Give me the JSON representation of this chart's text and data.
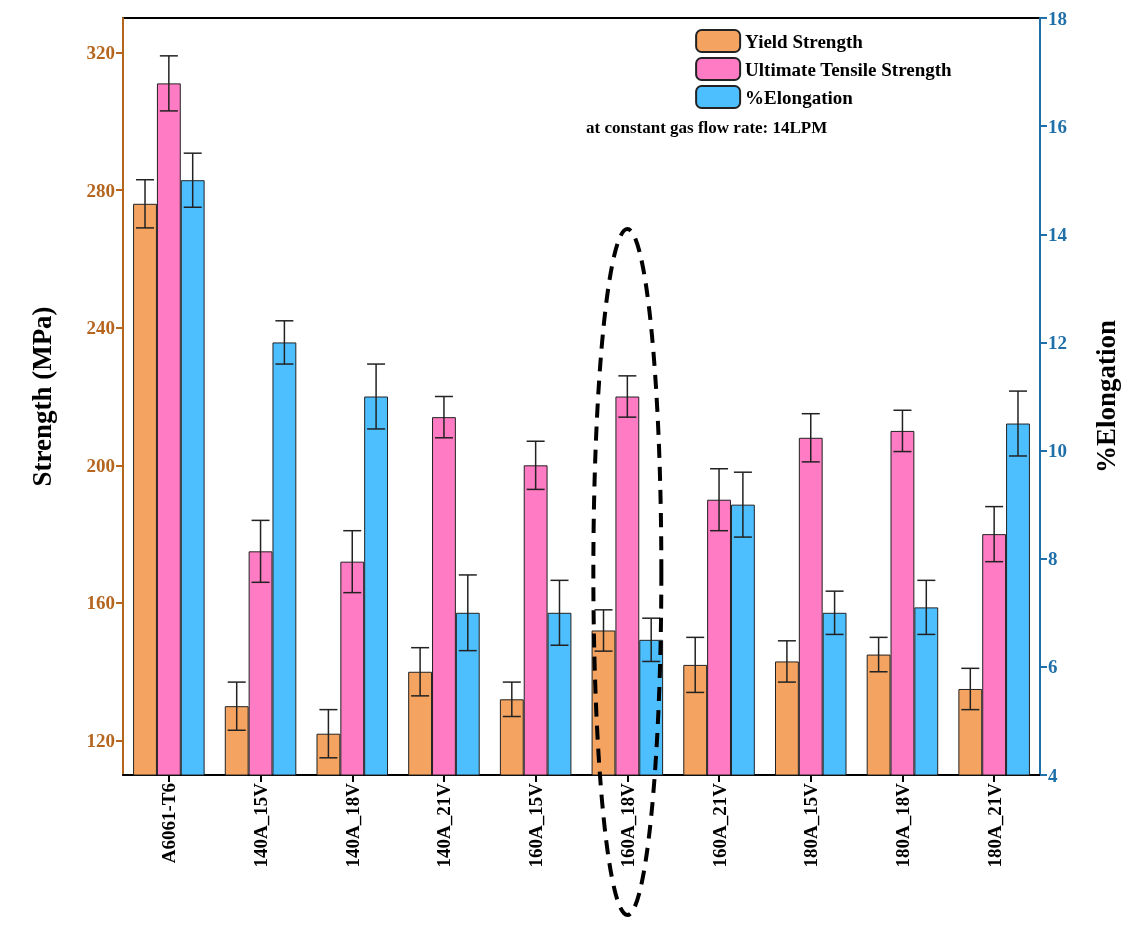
{
  "chart_data": {
    "type": "bar",
    "categories": [
      "A6061-T6",
      "140A_15V",
      "140A_18V",
      "140A_21V",
      "160A_15V",
      "160A_18V",
      "160A_21V",
      "180A_15V",
      "180A_18V",
      "180A_21V"
    ],
    "series": [
      {
        "name": "Yield Strength",
        "color": "#f4a460",
        "values": [
          276,
          130,
          122,
          140,
          132,
          152,
          142,
          143,
          145,
          135
        ],
        "errors": [
          7,
          7,
          7,
          7,
          5,
          6,
          8,
          6,
          5,
          6
        ]
      },
      {
        "name": "Ultimate Tensile Strength",
        "color": "#ff7bc4",
        "values": [
          311,
          175,
          172,
          214,
          200,
          220,
          190,
          208,
          210,
          180
        ],
        "errors": [
          8,
          9,
          9,
          6,
          7,
          6,
          9,
          7,
          6,
          8
        ]
      },
      {
        "name": "%Elongation",
        "color": "#4dbfff",
        "axis": "y2",
        "values": [
          15.0,
          12.0,
          11.0,
          7.0,
          7.0,
          6.5,
          9.0,
          7.0,
          7.1,
          10.5
        ],
        "errors": [
          0.5,
          0.4,
          0.6,
          0.7,
          0.6,
          0.4,
          0.6,
          0.4,
          0.5,
          0.6
        ]
      }
    ],
    "ylabel": "Strength (MPa)",
    "y2label": "%Elongation",
    "ylim": [
      110,
      330
    ],
    "yticks": [
      120,
      160,
      200,
      240,
      280,
      320
    ],
    "y2lim": [
      4,
      18
    ],
    "y2ticks": [
      4,
      6,
      8,
      10,
      12,
      14,
      16,
      18
    ],
    "legend": "top right",
    "grid": false,
    "annotations": [
      "at constant gas flow rate: 14LPM"
    ]
  }
}
